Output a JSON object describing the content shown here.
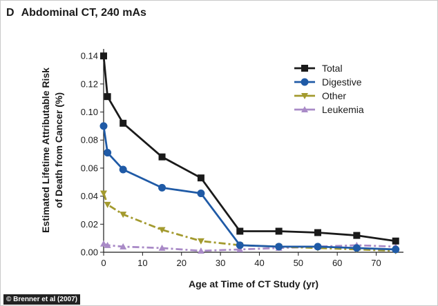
{
  "panel": {
    "letter": "D",
    "title": "Abdominal CT, 240 mAs"
  },
  "credit": "© Brenner et al (2007)",
  "chart_data": {
    "type": "line",
    "xlabel": "Age at Time of CT Study (yr)",
    "ylabel_line1": "Estimated Lifetime Attributable Risk",
    "ylabel_line2": "of Death from Cancer (%)",
    "xlim": [
      0,
      77
    ],
    "ylim": [
      0,
      0.145
    ],
    "xticks": [
      0,
      10,
      20,
      30,
      40,
      50,
      60,
      70
    ],
    "xtick_labels": [
      "0",
      "10",
      "20",
      "30",
      "40",
      "50",
      "60",
      "70"
    ],
    "yticks": [
      0,
      0.02,
      0.04,
      0.06,
      0.08,
      0.1,
      0.12,
      0.14
    ],
    "ytick_labels": [
      "0.00",
      "0.02",
      "0.04",
      "0.06",
      "0.08",
      "0.10",
      "0.12",
      "0.14"
    ],
    "grid": false,
    "legend": "top-right",
    "x": [
      0,
      1,
      5,
      15,
      25,
      35,
      45,
      55,
      65,
      75
    ],
    "series": [
      {
        "name": "Total",
        "color": "#1a1a1a",
        "marker": "square",
        "dash": "solid",
        "values": [
          0.14,
          0.111,
          0.092,
          0.068,
          0.053,
          0.015,
          0.015,
          0.014,
          0.012,
          0.008
        ]
      },
      {
        "name": "Digestive",
        "color": "#1f5aa6",
        "marker": "circle",
        "dash": "solid",
        "values": [
          0.09,
          0.071,
          0.059,
          0.046,
          0.042,
          0.005,
          0.004,
          0.004,
          0.003,
          0.002
        ]
      },
      {
        "name": "Other",
        "color": "#a39a2e",
        "marker": "triangle-down",
        "dash": "dashdot",
        "values": [
          0.042,
          0.034,
          0.027,
          0.016,
          0.008,
          0.005,
          0.004,
          0.003,
          0.002,
          0.001
        ]
      },
      {
        "name": "Leukemia",
        "color": "#a98ac7",
        "marker": "triangle-up",
        "dash": "dashdot",
        "values": [
          0.006,
          0.005,
          0.004,
          0.003,
          0.001,
          0.002,
          0.003,
          0.004,
          0.005,
          0.004
        ]
      }
    ]
  }
}
